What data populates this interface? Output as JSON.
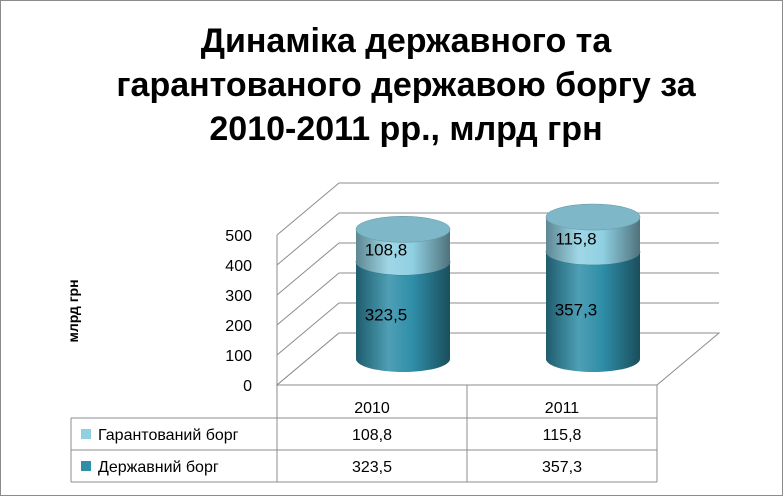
{
  "chart_data": {
    "type": "bar",
    "title": "Динаміка державного та гарантованого державою боргу за 2010-2011 рр., млрд грн",
    "ylabel": "млрд грн",
    "xlabel": "",
    "categories": [
      "2010",
      "2011"
    ],
    "ylim": [
      0,
      500
    ],
    "yticks": [
      "0",
      "100",
      "200",
      "300",
      "400",
      "500"
    ],
    "stacked": true,
    "grid": true,
    "legend": "data-table",
    "series": [
      {
        "name": "Державний борг",
        "values": [
          323.5,
          357.3
        ],
        "labels": [
          "323,5",
          "357,3"
        ],
        "color": "#2f8ea8"
      },
      {
        "name": "Гарантований борг",
        "values": [
          108.8,
          115.8
        ],
        "labels": [
          "108,8",
          "115,8"
        ],
        "color": "#8fd0e2"
      }
    ],
    "table": {
      "rows": [
        {
          "series": "Гарантований борг",
          "cells": [
            "108,8",
            "115,8"
          ],
          "color": "#8fd0e2"
        },
        {
          "series": "Державний борг",
          "cells": [
            "323,5",
            "357,3"
          ],
          "color": "#2f8ea8"
        }
      ]
    }
  }
}
